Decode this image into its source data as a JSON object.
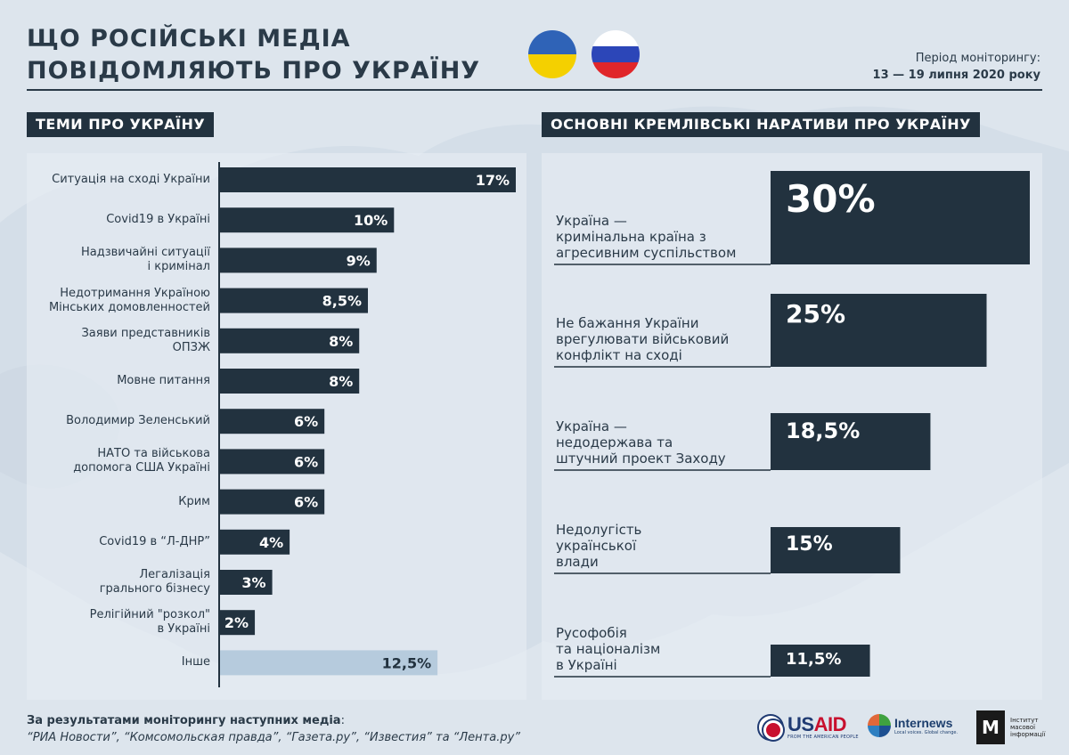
{
  "header": {
    "title_line1": "ЩО РОСІЙСЬКІ МЕДІА",
    "title_line2": "ПОВІДОМЛЯЮТЬ ПРО УКРАЇНУ",
    "period_label": "Період моніторингу:",
    "period_dates": "13 — 19 липня 2020 року"
  },
  "colors": {
    "bar": "#22323f",
    "bar_other": "#b6cbdd",
    "value_text": "#ffffff",
    "value_text_other": "#22323f",
    "flag_ua_top": "#2f63b7",
    "flag_ua_bottom": "#f4d000",
    "flag_ru_white": "#ffffff",
    "flag_ru_blue": "#2c46b8",
    "flag_ru_red": "#e0262a"
  },
  "sections": {
    "left_title": "ТЕМИ ПРО УКРАЇНУ",
    "right_title": "ОСНОВНІ КРЕМЛІВСЬКІ НАРАТИВИ ПРО УКРАЇНУ"
  },
  "chart_data": [
    {
      "type": "bar",
      "orientation": "horizontal",
      "title": "ТЕМИ ПРО УКРАЇНУ",
      "categories": [
        "Ситуація на сході України",
        "Covid19 в Україні",
        "Надзвичайні ситуації\nі кримінал",
        "Недотримання Україною\nМінських домовленностей",
        "Заяви представників\nОПЗЖ",
        "Мовне питання",
        "Володимир Зеленський",
        "НАТО та військова\nдопомога США Україні",
        "Крим",
        "Covid19 в “Л-ДНР”",
        "Легалізація\nгрального бізнесу",
        "Релігійний \"розкол\"\nв Україні",
        "Інше"
      ],
      "values": [
        17,
        10,
        9,
        8.5,
        8,
        8,
        6,
        6,
        6,
        4,
        3,
        2,
        12.5
      ],
      "value_labels": [
        "17%",
        "10%",
        "9%",
        "8,5%",
        "8%",
        "8%",
        "6%",
        "6%",
        "6%",
        "4%",
        "3%",
        "2%",
        "12,5%"
      ],
      "highlight_last": true,
      "xlim": [
        0,
        17
      ]
    },
    {
      "type": "bar",
      "orientation": "horizontal",
      "title": "ОСНОВНІ КРЕМЛІВСЬКІ НАРАТИВИ ПРО УКРАЇНУ",
      "categories": [
        "Україна —\nкримінальна країна з\nагресивним суспільством",
        "Не бажання України\nврегулювати військовий\nконфлікт на сході",
        "Україна —\nнедодержава та\nштучний проект Заходу",
        "Недолугість\nукраїнської\nвлади",
        "Русофобія\nта націоналізм\nв Україні"
      ],
      "values": [
        30,
        25,
        18.5,
        15,
        11.5
      ],
      "value_labels": [
        "30%",
        "25%",
        "18,5%",
        "15%",
        "11,5%"
      ],
      "xlim": [
        0,
        30
      ]
    }
  ],
  "footer": {
    "sources_label": "За результатами моніторингу наступних медіа",
    "sources_colon": ":",
    "sources_list": "“РИА Новости”, “Комсомольская правда”, “Газета.ру”, “Известия” та “Лента.ру”"
  },
  "logos": {
    "usaid_us": "US",
    "usaid_aid": "AID",
    "usaid_sub": "FROM THE AMERICAN PEOPLE",
    "internews_name": "Internews",
    "internews_sub": "Local voices. Global change.",
    "imi_mark": "М",
    "imi_line1": "Інститут",
    "imi_line2": "масової",
    "imi_line3": "інформації"
  }
}
